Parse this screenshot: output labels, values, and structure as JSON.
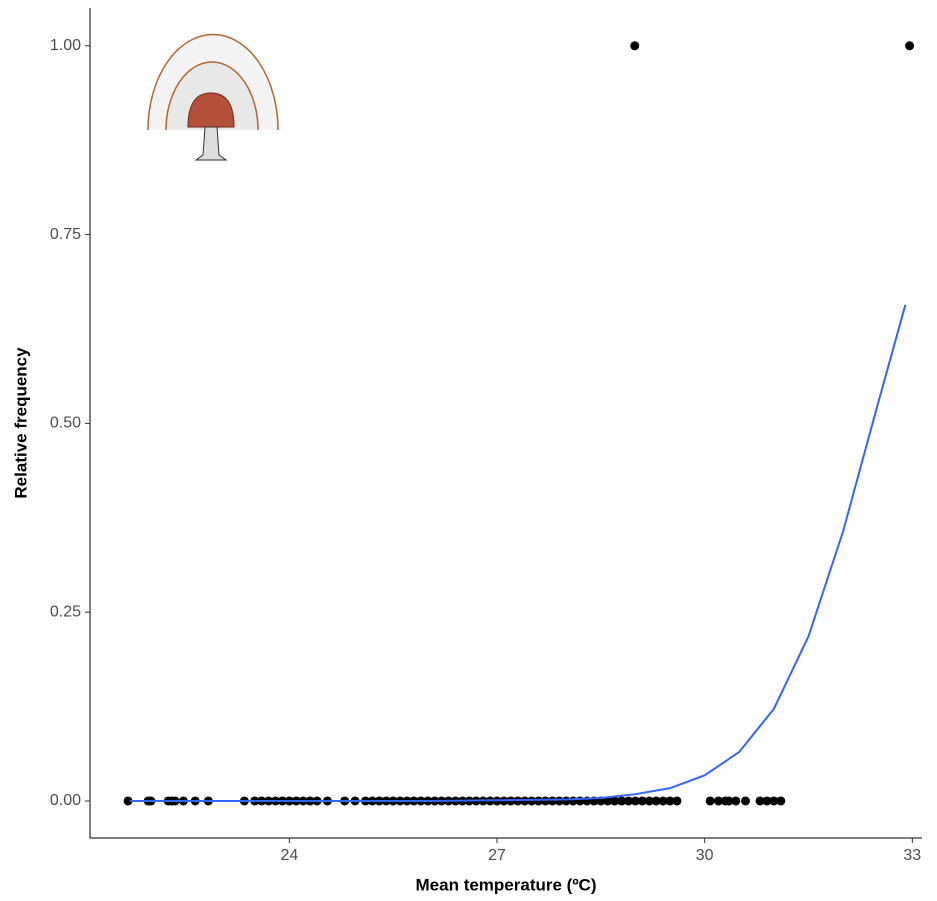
{
  "chart_data": {
    "type": "scatter",
    "x_label": "Mean temperature (ºC)",
    "y_label": "Relative frequency",
    "xlim": [
      21.12,
      33.14
    ],
    "ylim": [
      -0.049,
      1.05
    ],
    "xticks": [
      24,
      27,
      30,
      33
    ],
    "yticks": [
      {
        "value": 0,
        "label": "0.00"
      },
      {
        "value": 0.25,
        "label": "0.25"
      },
      {
        "value": 0.5,
        "label": "0.50"
      },
      {
        "value": 0.75,
        "label": "0.75"
      },
      {
        "value": 1,
        "label": "1.00"
      }
    ],
    "points": {
      "color": "#000000",
      "x": [
        21.67,
        21.96,
        22.0,
        22.25,
        22.3,
        22.35,
        22.47,
        22.64,
        22.83,
        23.35,
        23.5,
        23.6,
        23.7,
        23.8,
        23.9,
        24.0,
        24.1,
        24.2,
        24.3,
        24.4,
        24.55,
        24.8,
        24.95,
        25.1,
        25.2,
        25.3,
        25.4,
        25.5,
        25.6,
        25.7,
        25.8,
        25.9,
        26.0,
        26.1,
        26.2,
        26.3,
        26.4,
        26.5,
        26.6,
        26.7,
        26.8,
        26.9,
        27.0,
        27.1,
        27.2,
        27.3,
        27.4,
        27.5,
        27.6,
        27.7,
        27.8,
        27.9,
        28.0,
        28.1,
        28.2,
        28.3,
        28.4,
        28.5,
        28.6,
        28.7,
        28.8,
        28.9,
        29.0,
        29.1,
        29.2,
        29.3,
        29.4,
        29.5,
        29.6,
        30.08,
        30.2,
        30.3,
        30.35,
        30.45,
        30.59,
        30.8,
        30.9,
        31.0,
        31.1,
        28.99,
        32.96
      ],
      "values": [
        0,
        0,
        0,
        0,
        0,
        0,
        0,
        0,
        0,
        0,
        0,
        0,
        0,
        0,
        0,
        0,
        0,
        0,
        0,
        0,
        0,
        0,
        0,
        0,
        0,
        0,
        0,
        0,
        0,
        0,
        0,
        0,
        0,
        0,
        0,
        0,
        0,
        0,
        0,
        0,
        0,
        0,
        0,
        0,
        0,
        0,
        0,
        0,
        0,
        0,
        0,
        0,
        0,
        0,
        0,
        0,
        0,
        0,
        0,
        0,
        0,
        0,
        0,
        0,
        0,
        0,
        0,
        0,
        0,
        0,
        0,
        0,
        0,
        0,
        0,
        0,
        0,
        0,
        0,
        1,
        1
      ]
    },
    "fit": {
      "color": "#3366ff",
      "x": [
        21.7,
        23,
        24,
        25,
        26,
        27,
        28,
        28.5,
        29,
        29.5,
        30,
        30.5,
        31,
        31.5,
        32,
        32.5,
        32.9
      ],
      "values": [
        0,
        0,
        0,
        0,
        0,
        0.001,
        0.002,
        0.004,
        0.009,
        0.017,
        0.034,
        0.065,
        0.122,
        0.218,
        0.357,
        0.525,
        0.657
      ]
    }
  }
}
